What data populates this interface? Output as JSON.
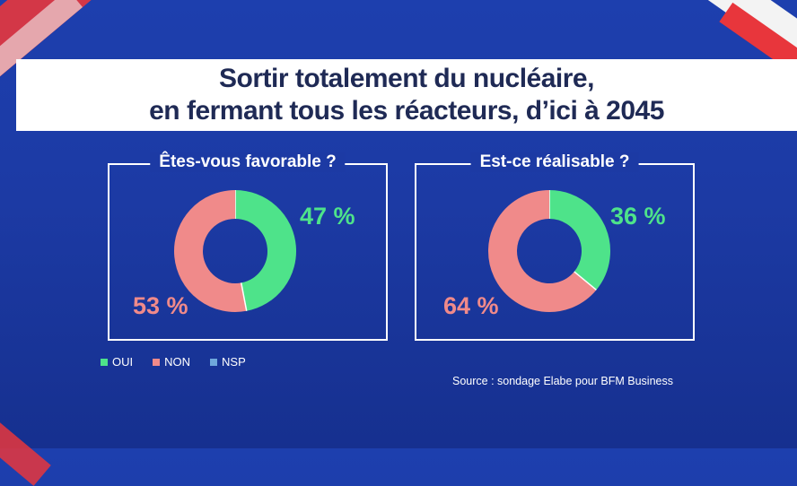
{
  "header": {
    "title_line1": "Sortir totalement du nucléaire,",
    "title_line2": "en fermant tous les réacteurs, d’ici à 2045"
  },
  "chart_data": [
    {
      "type": "pie",
      "title": "Êtes-vous favorable ?",
      "categories": [
        "OUI",
        "NON",
        "NSP"
      ],
      "values": [
        47,
        53,
        0
      ],
      "labels": [
        "47 %",
        "53 %"
      ],
      "colors": [
        "#4ee38a",
        "#f08a8a",
        "#6fa8dc"
      ]
    },
    {
      "type": "pie",
      "title": "Est-ce réalisable ?",
      "categories": [
        "OUI",
        "NON",
        "NSP"
      ],
      "values": [
        36,
        64,
        0
      ],
      "labels": [
        "36 %",
        "64 %"
      ],
      "colors": [
        "#4ee38a",
        "#f08a8a",
        "#6fa8dc"
      ]
    }
  ],
  "legend": [
    {
      "label": "OUI",
      "color": "#4ee38a"
    },
    {
      "label": "NON",
      "color": "#f08a8a"
    },
    {
      "label": "NSP",
      "color": "#6fa8dc"
    }
  ],
  "source": "Source : sondage Elabe pour BFM Business"
}
